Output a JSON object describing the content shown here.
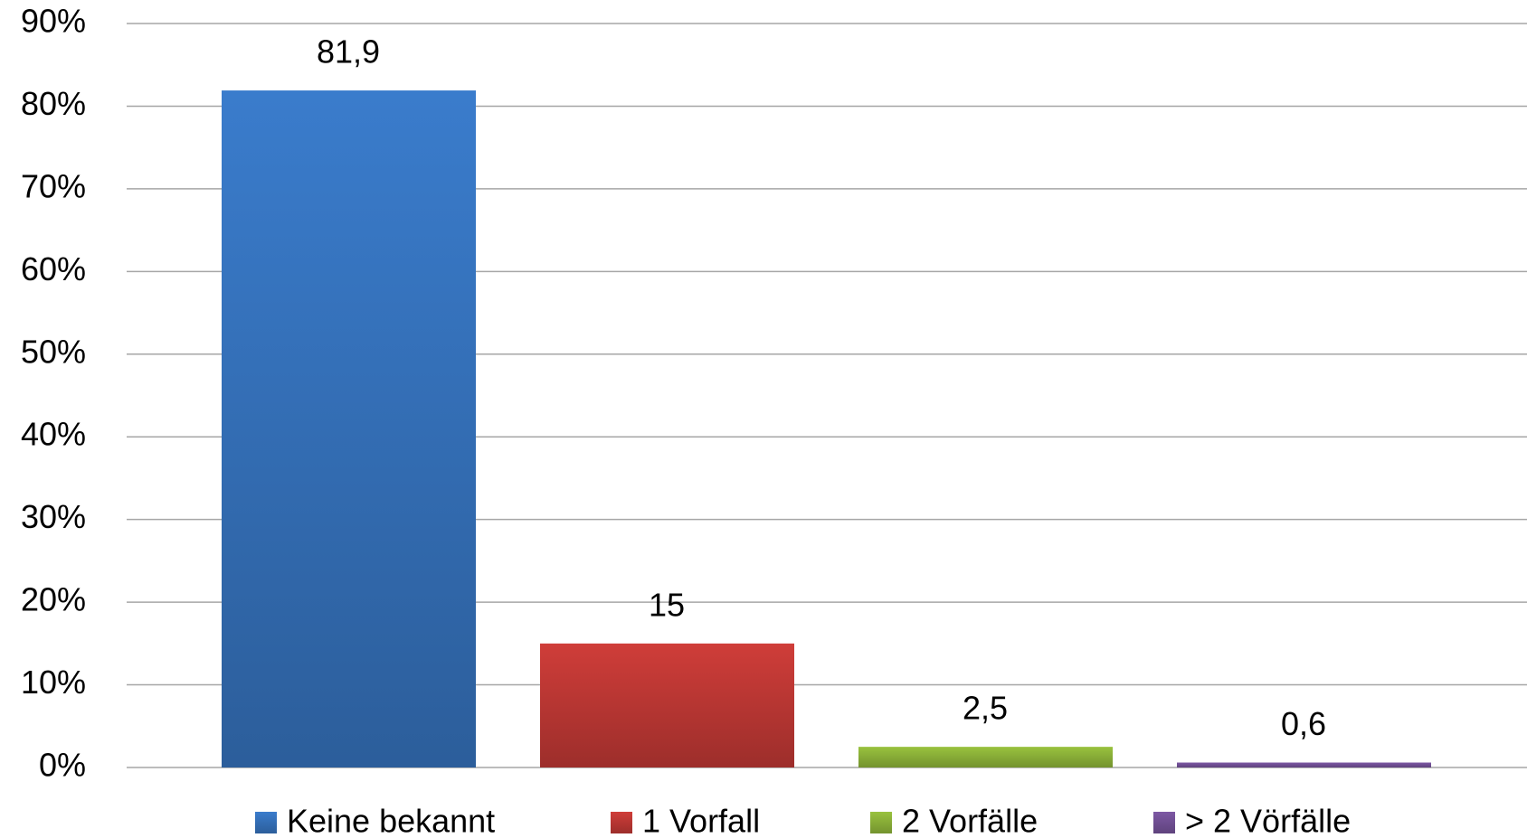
{
  "chart_data": {
    "type": "bar",
    "series": [
      {
        "name": "Keine bekannt",
        "color": "#3a7ccc",
        "values": [
          81.9
        ],
        "value_labels": [
          "81,9"
        ]
      },
      {
        "name": "1 Vorfall",
        "color": "#cf3d39",
        "values": [
          15
        ],
        "value_labels": [
          "15"
        ]
      },
      {
        "name": "2 Vorfälle",
        "color": "#99c23e",
        "values": [
          2.5
        ],
        "value_labels": [
          "2,5"
        ]
      },
      {
        "name": "> 2 Vörfälle",
        "color": "#7d58a4",
        "values": [
          0.6
        ],
        "value_labels": [
          "0,6"
        ]
      }
    ],
    "ylim": [
      0,
      90
    ],
    "yticks": [
      {
        "value": 0,
        "label": "0%"
      },
      {
        "value": 10,
        "label": "10%"
      },
      {
        "value": 20,
        "label": "20%"
      },
      {
        "value": 30,
        "label": "30%"
      },
      {
        "value": 40,
        "label": "40%"
      },
      {
        "value": 50,
        "label": "50%"
      },
      {
        "value": 60,
        "label": "60%"
      },
      {
        "value": 70,
        "label": "70%"
      },
      {
        "value": 80,
        "label": "80%"
      },
      {
        "value": 90,
        "label": "90%"
      }
    ],
    "grid": true,
    "legend": "bottom"
  }
}
